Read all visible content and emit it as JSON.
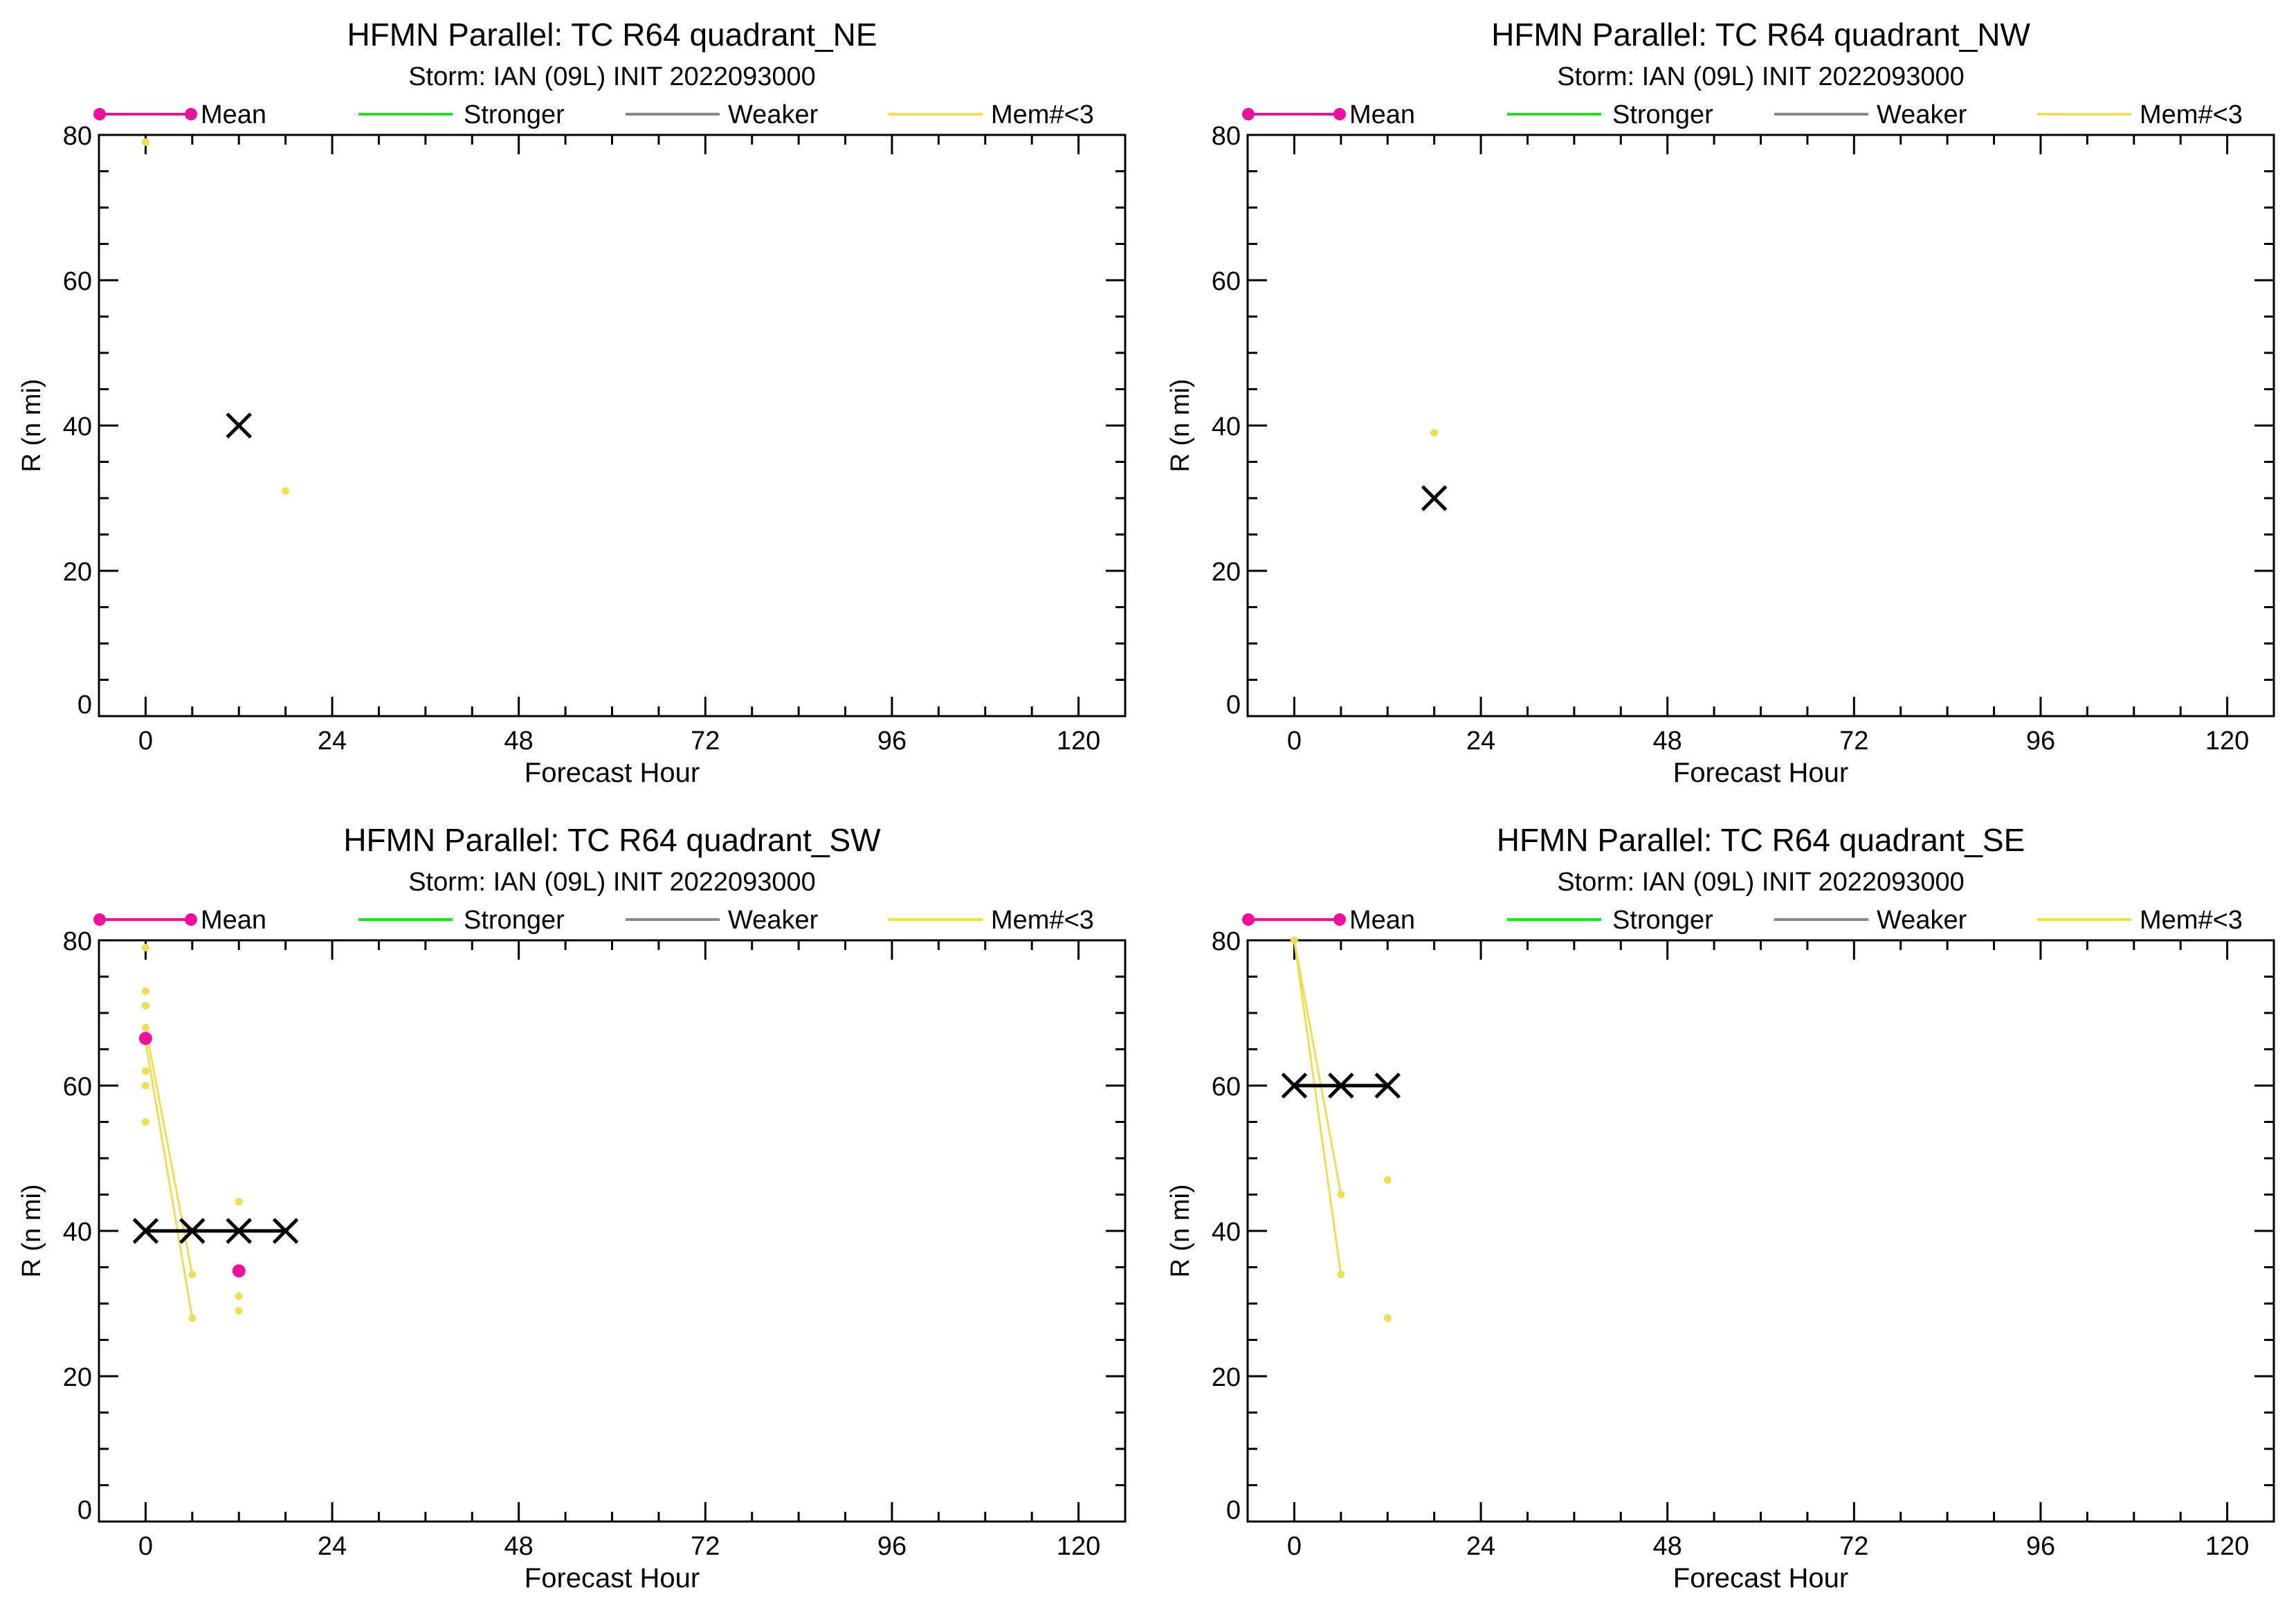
{
  "colors": {
    "mean": "#ee1199",
    "stronger": "#22dd22",
    "weaker": "#888888",
    "mem_lt3": "#eedd55",
    "best_track": "#000000"
  },
  "legend": {
    "mean": "Mean",
    "stronger": "Stronger",
    "weaker": "Weaker",
    "mem_lt3": "Mem#<3"
  },
  "chart_data": [
    {
      "type": "line",
      "title": "HFMN Parallel: TC  R64 quadrant_NE",
      "subtitle": "Storm: IAN (09L) INIT 2022093000",
      "xlabel": "Forecast Hour",
      "ylabel": "R (n mi)",
      "xlim": [
        -6,
        126
      ],
      "ylim": [
        0,
        80
      ],
      "xticks": [
        0,
        24,
        48,
        72,
        96,
        120
      ],
      "yticks": [
        0,
        20,
        40,
        60,
        80
      ],
      "best_track": [
        {
          "x": 12,
          "y": 40
        }
      ],
      "members_lt3": {
        "lines": [],
        "points": [
          {
            "x": 0,
            "y": 79
          },
          {
            "x": 18,
            "y": 31
          }
        ]
      },
      "mean": []
    },
    {
      "type": "line",
      "title": "HFMN Parallel: TC  R64 quadrant_NW",
      "subtitle": "Storm: IAN (09L) INIT 2022093000",
      "xlabel": "Forecast Hour",
      "ylabel": "R (n mi)",
      "xlim": [
        -6,
        126
      ],
      "ylim": [
        0,
        80
      ],
      "xticks": [
        0,
        24,
        48,
        72,
        96,
        120
      ],
      "yticks": [
        0,
        20,
        40,
        60,
        80
      ],
      "best_track": [
        {
          "x": 18,
          "y": 30
        }
      ],
      "members_lt3": {
        "lines": [],
        "points": [
          {
            "x": 18,
            "y": 39
          }
        ]
      },
      "mean": []
    },
    {
      "type": "line",
      "title": "HFMN Parallel: TC  R64 quadrant_SW",
      "subtitle": "Storm: IAN (09L) INIT 2022093000",
      "xlabel": "Forecast Hour",
      "ylabel": "R (n mi)",
      "xlim": [
        -6,
        126
      ],
      "ylim": [
        0,
        80
      ],
      "xticks": [
        0,
        24,
        48,
        72,
        96,
        120
      ],
      "yticks": [
        0,
        20,
        40,
        60,
        80
      ],
      "best_track": [
        {
          "x": 0,
          "y": 40
        },
        {
          "x": 6,
          "y": 40
        },
        {
          "x": 12,
          "y": 40
        },
        {
          "x": 18,
          "y": 40
        }
      ],
      "members_lt3": {
        "lines": [
          [
            {
              "x": 0,
              "y": 68
            },
            {
              "x": 6,
              "y": 34
            }
          ],
          [
            {
              "x": 0,
              "y": 66
            },
            {
              "x": 6,
              "y": 28
            }
          ]
        ],
        "points": [
          {
            "x": 0,
            "y": 79
          },
          {
            "x": 0,
            "y": 73
          },
          {
            "x": 0,
            "y": 71
          },
          {
            "x": 0,
            "y": 68
          },
          {
            "x": 0,
            "y": 66
          },
          {
            "x": 0,
            "y": 62
          },
          {
            "x": 0,
            "y": 60
          },
          {
            "x": 0,
            "y": 55
          },
          {
            "x": 6,
            "y": 34
          },
          {
            "x": 6,
            "y": 28
          },
          {
            "x": 12,
            "y": 44
          },
          {
            "x": 12,
            "y": 31
          },
          {
            "x": 12,
            "y": 29
          }
        ]
      },
      "mean": [
        {
          "x": 0,
          "y": 66.5
        },
        {
          "x": 12,
          "y": 34.5
        }
      ]
    },
    {
      "type": "line",
      "title": "HFMN Parallel: TC  R64 quadrant_SE",
      "subtitle": "Storm: IAN (09L) INIT 2022093000",
      "xlabel": "Forecast Hour",
      "ylabel": "R (n mi)",
      "xlim": [
        -6,
        126
      ],
      "ylim": [
        0,
        80
      ],
      "xticks": [
        0,
        24,
        48,
        72,
        96,
        120
      ],
      "yticks": [
        0,
        20,
        40,
        60,
        80
      ],
      "best_track": [
        {
          "x": 0,
          "y": 60
        },
        {
          "x": 6,
          "y": 60
        },
        {
          "x": 12,
          "y": 60
        }
      ],
      "members_lt3": {
        "lines": [
          [
            {
              "x": 0,
              "y": 80
            },
            {
              "x": 6,
              "y": 45
            }
          ],
          [
            {
              "x": 0,
              "y": 80
            },
            {
              "x": 6,
              "y": 34
            }
          ]
        ],
        "points": [
          {
            "x": 0,
            "y": 80
          },
          {
            "x": 6,
            "y": 45
          },
          {
            "x": 6,
            "y": 34
          },
          {
            "x": 12,
            "y": 47
          },
          {
            "x": 12,
            "y": 28
          }
        ]
      },
      "mean": []
    }
  ]
}
